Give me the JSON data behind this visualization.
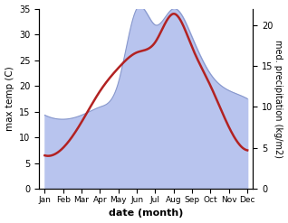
{
  "months": [
    "Jan",
    "Feb",
    "Mar",
    "Apr",
    "May",
    "Jun",
    "Jul",
    "Aug",
    "Sep",
    "Oct",
    "Nov",
    "Dec"
  ],
  "temp": [
    6.5,
    8.0,
    13.0,
    19.0,
    23.5,
    26.5,
    28.5,
    34.0,
    27.5,
    20.0,
    12.0,
    7.5
  ],
  "precip": [
    9.0,
    8.5,
    9.0,
    10.0,
    13.0,
    22.0,
    20.0,
    22.0,
    18.5,
    14.0,
    12.0,
    11.0
  ],
  "temp_color": "#b22222",
  "precip_fill_color": "#b8c4ee",
  "precip_line_color": "#8898cc",
  "ylim_left": [
    0,
    35
  ],
  "ylim_right": [
    0,
    22
  ],
  "xlabel": "date (month)",
  "ylabel_left": "max temp (C)",
  "ylabel_right": "med. precipitation (kg/m2)",
  "yticks_left": [
    0,
    5,
    10,
    15,
    20,
    25,
    30,
    35
  ],
  "yticks_right": [
    0,
    5,
    10,
    15,
    20
  ],
  "background_color": "#ffffff",
  "temp_linewidth": 1.8,
  "figsize": [
    3.18,
    2.47
  ],
  "dpi": 100
}
